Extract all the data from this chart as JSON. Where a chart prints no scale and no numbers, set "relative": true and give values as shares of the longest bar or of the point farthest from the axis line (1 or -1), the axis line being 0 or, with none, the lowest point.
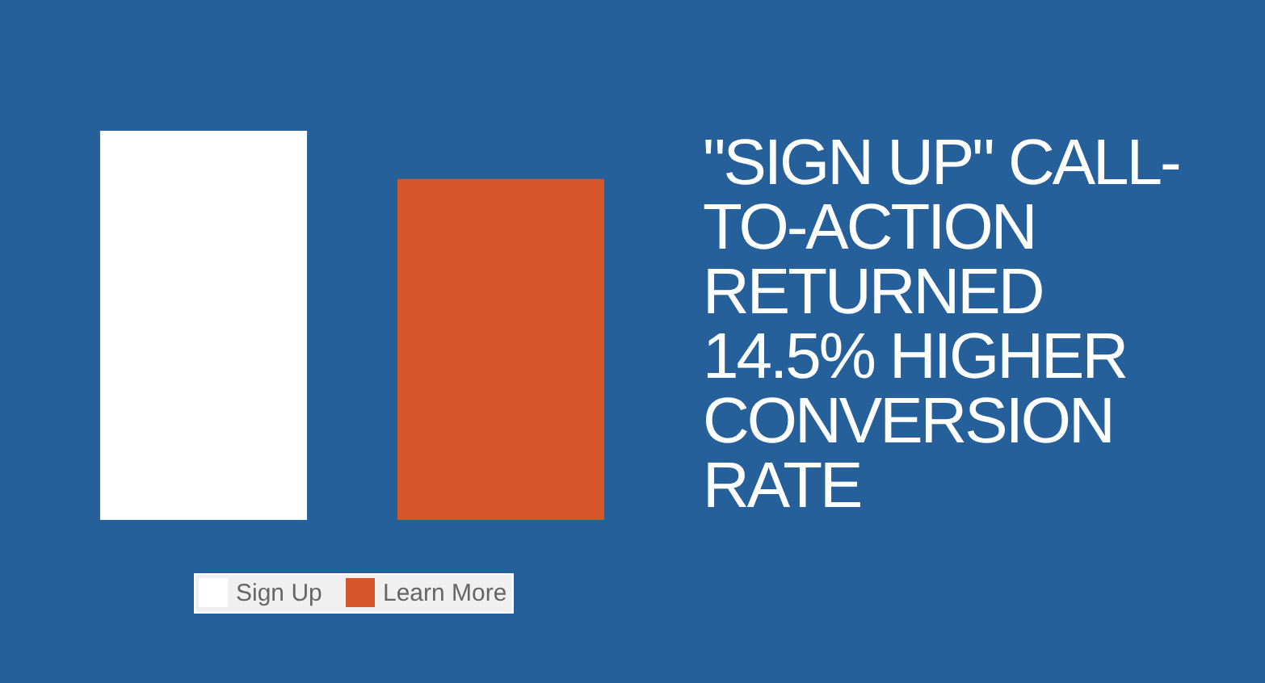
{
  "chart_data": {
    "type": "bar",
    "title": "\"SIGN UP\" CALL-TO-ACTION RETURNED 14.5% HIGHER CONVERSION RATE",
    "categories": [
      null
    ],
    "series": [
      {
        "name": "Sign Up",
        "color": "#ffffff",
        "values": [
          1
        ]
      },
      {
        "name": "Learn More",
        "color": "#d6562b",
        "values": [
          0.876
        ]
      }
    ],
    "relative": true,
    "legend": "bottom"
  }
}
